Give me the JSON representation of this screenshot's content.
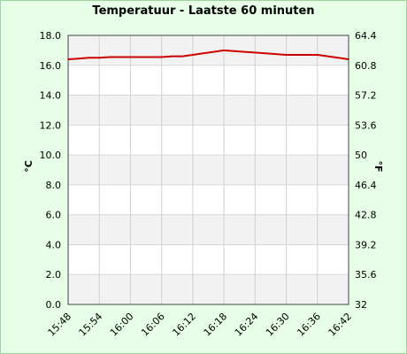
{
  "chart_data": {
    "type": "line",
    "title": "Temperatuur - Laatste 60 minuten",
    "ylabel_left": "°C",
    "ylabel_right": "°F",
    "ylim": [
      0,
      18
    ],
    "y_ticks_left": [
      "0.0",
      "2.0",
      "4.0",
      "6.0",
      "8.0",
      "10.0",
      "12.0",
      "14.0",
      "16.0",
      "18.0"
    ],
    "y_ticks_right": [
      "32",
      "35.6",
      "39.2",
      "42.8",
      "46.4",
      "50",
      "53.6",
      "57.2",
      "60.8",
      "64.4"
    ],
    "x_tick_labels": [
      "15:48",
      "15:54",
      "16:00",
      "16:06",
      "16:12",
      "16:18",
      "16:24",
      "16:30",
      "16:36",
      "16:42"
    ],
    "grid": true,
    "line_color": "#cc0000",
    "band_color": "#f2f2f2",
    "background_color": "#e6ffe6",
    "series": [
      {
        "x": [
          "15:48",
          "15:50",
          "15:52",
          "15:54",
          "15:56",
          "15:58",
          "16:00",
          "16:02",
          "16:04",
          "16:06",
          "16:08",
          "16:10",
          "16:12",
          "16:14",
          "16:16",
          "16:18",
          "16:20",
          "16:22",
          "16:24",
          "16:26",
          "16:28",
          "16:30",
          "16:32",
          "16:34",
          "16:36",
          "16:38",
          "16:40",
          "16:42"
        ],
        "values": [
          16.4,
          16.45,
          16.5,
          16.5,
          16.55,
          16.55,
          16.55,
          16.55,
          16.55,
          16.55,
          16.6,
          16.6,
          16.7,
          16.8,
          16.9,
          17.0,
          16.95,
          16.9,
          16.85,
          16.8,
          16.75,
          16.7,
          16.7,
          16.7,
          16.7,
          16.6,
          16.5,
          16.4
        ]
      }
    ]
  }
}
